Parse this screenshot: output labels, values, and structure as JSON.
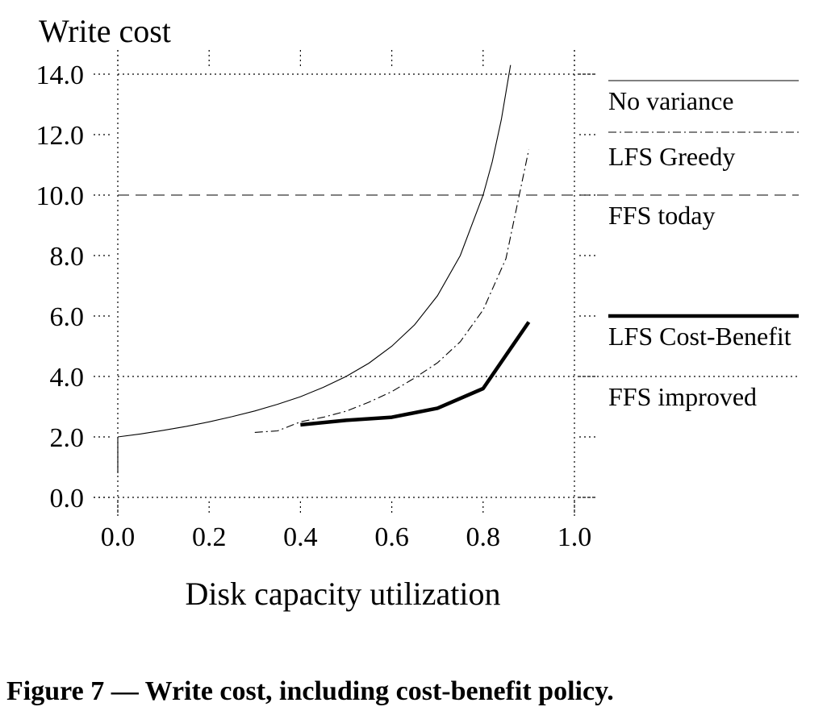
{
  "chart_data": {
    "type": "line",
    "title": "Write cost",
    "xlabel": "Disk capacity utilization",
    "ylabel": "",
    "xlim": [
      0.0,
      1.0
    ],
    "ylim": [
      0.0,
      14.0
    ],
    "xticks": [
      "0.0",
      "0.2",
      "0.4",
      "0.6",
      "0.8",
      "1.0"
    ],
    "yticks": [
      "0.0",
      "2.0",
      "4.0",
      "6.0",
      "8.0",
      "10.0",
      "12.0",
      "14.0"
    ],
    "grid": false,
    "legend_position": "right",
    "series": [
      {
        "name": "No variance",
        "style": "solid-thin",
        "color": "#000000",
        "x": [
          0.0,
          0.05,
          0.1,
          0.15,
          0.2,
          0.25,
          0.3,
          0.35,
          0.4,
          0.45,
          0.5,
          0.55,
          0.6,
          0.65,
          0.7,
          0.75,
          0.8,
          0.82,
          0.84,
          0.86
        ],
        "y": [
          2.0,
          2.1,
          2.22,
          2.35,
          2.5,
          2.67,
          2.86,
          3.08,
          3.33,
          3.64,
          4.0,
          4.44,
          5.0,
          5.71,
          6.67,
          8.0,
          10.0,
          11.1,
          12.5,
          14.3
        ]
      },
      {
        "name": "LFS Greedy",
        "style": "dash-dot",
        "color": "#000000",
        "x": [
          0.3,
          0.35,
          0.4,
          0.45,
          0.5,
          0.55,
          0.6,
          0.65,
          0.7,
          0.75,
          0.8,
          0.85,
          0.9
        ],
        "y": [
          2.15,
          2.2,
          2.5,
          2.65,
          2.85,
          3.15,
          3.5,
          3.95,
          4.45,
          5.15,
          6.2,
          7.9,
          11.5
        ]
      },
      {
        "name": "LFS Cost-Benefit",
        "style": "solid-thick",
        "color": "#000000",
        "x": [
          0.4,
          0.5,
          0.6,
          0.7,
          0.8,
          0.9
        ],
        "y": [
          2.4,
          2.55,
          2.65,
          2.95,
          3.6,
          5.8
        ]
      }
    ],
    "reference_lines": [
      {
        "name": "FFS today",
        "y": 10.0,
        "style": "dashed"
      },
      {
        "name": "FFS improved",
        "y": 4.0,
        "style": "dotted"
      }
    ],
    "legend": [
      "No variance",
      "LFS Greedy",
      "FFS today",
      "LFS Cost-Benefit",
      "FFS improved"
    ]
  },
  "caption": "Figure 7 — Write cost, including cost-benefit policy."
}
